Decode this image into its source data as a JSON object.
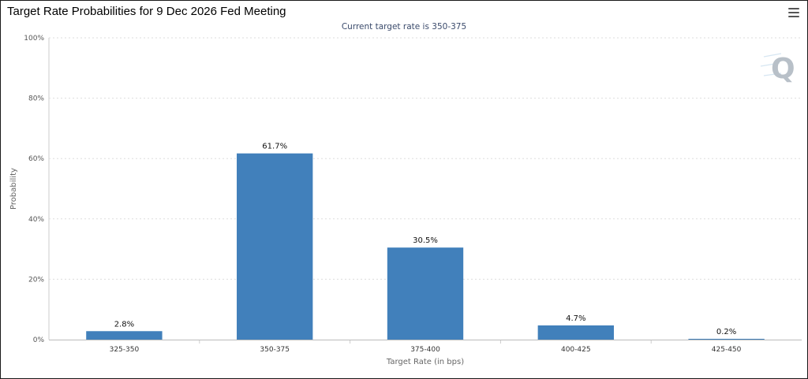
{
  "header": {
    "title": "Target Rate Probabilities for 9 Dec 2026 Fed Meeting",
    "menu_icon": "hamburger-menu-icon"
  },
  "watermark": {
    "letter": "Q",
    "color": "#b8c0c8"
  },
  "chart_data": {
    "type": "bar",
    "subtitle": "Current target rate is 350-375",
    "categories": [
      "325-350",
      "350-375",
      "375-400",
      "400-425",
      "425-450"
    ],
    "values": [
      2.8,
      61.7,
      30.5,
      4.7,
      0.2
    ],
    "data_labels": [
      "2.8%",
      "61.7%",
      "30.5%",
      "4.7%",
      "0.2%"
    ],
    "xlabel": "Target Rate (in bps)",
    "ylabel": "Probability",
    "ylim": [
      0,
      100
    ],
    "yticks": [
      0,
      20,
      40,
      60,
      80,
      100
    ],
    "ytick_labels": [
      "0%",
      "20%",
      "40%",
      "60%",
      "80%",
      "100%"
    ],
    "grid": true,
    "bar_color": "#4180bb"
  }
}
